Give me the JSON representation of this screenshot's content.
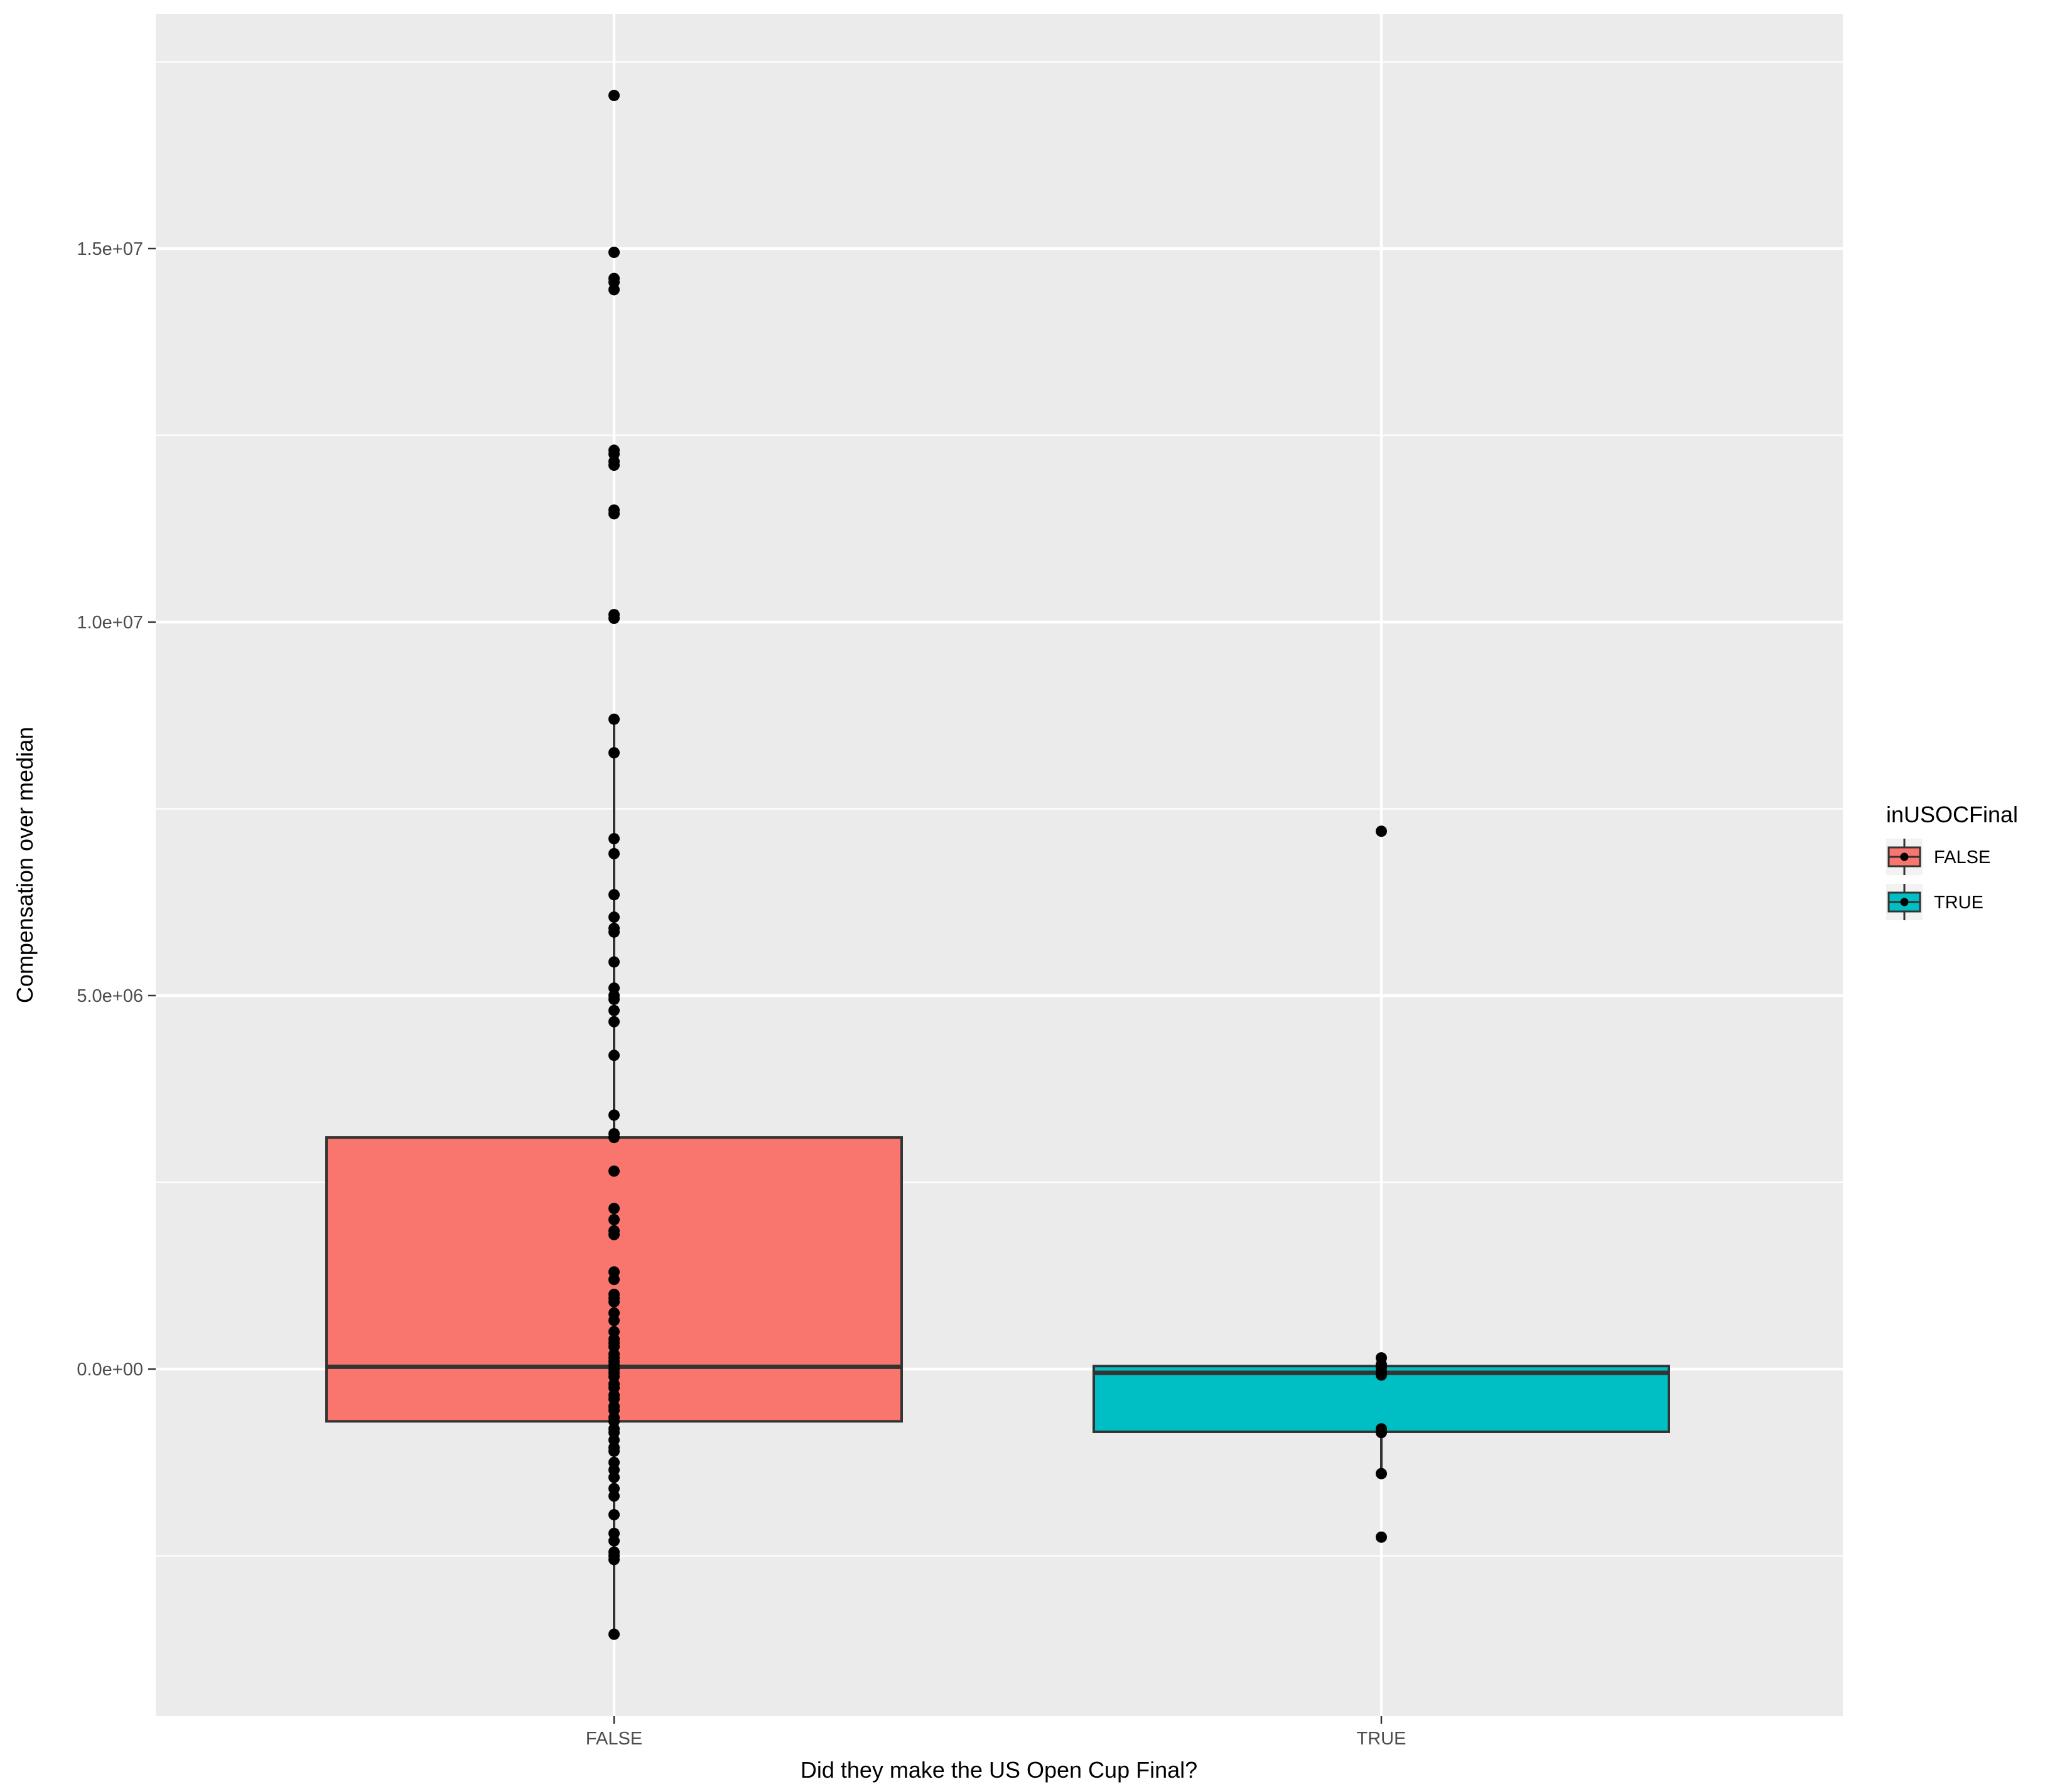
{
  "chart_data": {
    "type": "boxplot",
    "title": "",
    "xlabel": "Did they make the US Open Cup Final?",
    "ylabel": "Compensation over median",
    "categories": [
      "FALSE",
      "TRUE"
    ],
    "ylim": [
      -4700000,
      18000000
    ],
    "yticks": [
      0,
      5000000,
      10000000,
      15000000
    ],
    "ytick_labels": [
      "0.0e+00",
      "5.0e+06",
      "1.0e+07",
      "1.5e+07"
    ],
    "grid": true,
    "legend": {
      "title": "inUSOCFinal",
      "placement": "right",
      "entries": [
        {
          "label": "FALSE",
          "color": "#F8766D"
        },
        {
          "label": "TRUE",
          "color": "#00BFC4"
        }
      ]
    },
    "boxes": [
      {
        "category": "FALSE",
        "color": "#F8766D",
        "q1": -700000,
        "median": 30000,
        "q3": 3100000,
        "whisker_low": -3550000,
        "whisker_high": 8700000
      },
      {
        "category": "TRUE",
        "color": "#00BFC4",
        "q1": -840000,
        "median": -50000,
        "q3": 40000,
        "whisker_low": -1400000,
        "whisker_high": 150000
      }
    ],
    "points": {
      "FALSE": [
        17050000,
        14950000,
        14950000,
        14600000,
        14550000,
        14450000,
        12300000,
        12250000,
        12150000,
        12100000,
        11500000,
        11450000,
        10100000,
        10050000,
        8700000,
        8250000,
        7100000,
        6900000,
        6350000,
        6050000,
        5900000,
        5850000,
        5450000,
        5100000,
        5000000,
        4950000,
        4800000,
        4650000,
        4200000,
        3400000,
        3150000,
        3100000,
        2650000,
        2150000,
        2000000,
        1850000,
        1800000,
        1300000,
        1200000,
        1000000,
        950000,
        900000,
        750000,
        650000,
        500000,
        400000,
        350000,
        300000,
        200000,
        150000,
        100000,
        50000,
        0,
        -50000,
        -100000,
        -200000,
        -250000,
        -350000,
        -400000,
        -500000,
        -550000,
        -650000,
        -700000,
        -800000,
        -850000,
        -950000,
        -1050000,
        -1100000,
        -1250000,
        -1350000,
        -1450000,
        -1600000,
        -1700000,
        -1950000,
        -2200000,
        -2300000,
        -2450000,
        -2500000,
        -2550000,
        -3550000
      ],
      "TRUE": [
        7200000,
        150000,
        60000,
        20000,
        -30000,
        -80000,
        -800000,
        -850000,
        -1400000,
        -2250000
      ]
    }
  }
}
